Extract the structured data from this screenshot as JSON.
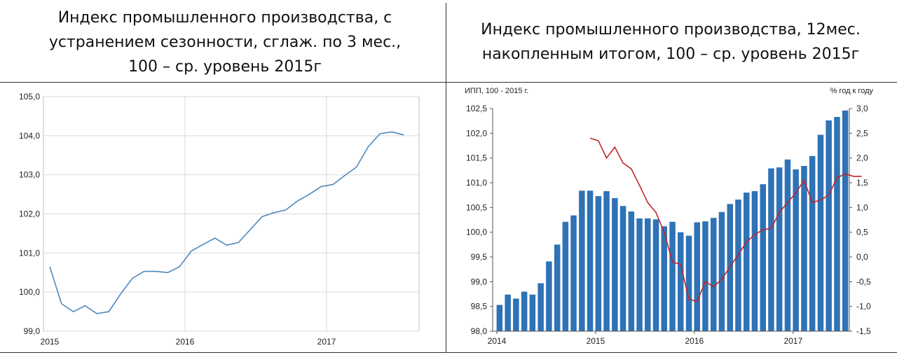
{
  "headers": {
    "left": [
      "Индекс промышленного производства, с",
      "устранением сезонности, сглаж. по 3 мес.,",
      "100 – ср. уровень 2015г"
    ],
    "right": [
      "Индекс промышленного производства, 12мес.",
      "накопленным итогом, 100 – ср. уровень 2015г"
    ]
  },
  "colors": {
    "line_blue": "#4f89bd",
    "bar_blue": "#2f72b6",
    "line_red": "#c0262b",
    "grid": "#d9d9d9"
  },
  "chart_data": [
    {
      "type": "line",
      "title": "",
      "x_tick_labels": [
        "2015",
        "2016",
        "2017"
      ],
      "x_start": "2015-01",
      "y_tick_labels": [
        "99,0",
        "100,0",
        "101,0",
        "102,0",
        "103,0",
        "104,0",
        "105,0"
      ],
      "ylim": [
        99,
        105
      ],
      "grid": true,
      "series": [
        {
          "values": [
            100.65,
            99.7,
            99.5,
            99.65,
            99.45,
            99.5,
            99.95,
            100.35,
            100.53,
            100.53,
            100.5,
            100.65,
            101.05,
            101.22,
            101.38,
            101.2,
            101.27,
            101.6,
            101.93,
            102.03,
            102.1,
            102.33,
            102.5,
            102.7,
            102.75,
            102.98,
            103.2,
            103.72,
            104.05,
            104.1,
            104.02
          ]
        }
      ]
    },
    {
      "type": "bar+line",
      "left_axis_title": "ИПП, 100 - 2015 г.",
      "right_axis_title": "% год к году",
      "x_tick_labels": [
        "2014",
        "2015",
        "2016",
        "2017"
      ],
      "x_start": "2014-01",
      "y_left_tick_labels": [
        "98,0",
        "98,5",
        "99,0",
        "99,5",
        "100,0",
        "100,5",
        "101,0",
        "101,5",
        "102,0",
        "102,5"
      ],
      "y_left_lim": [
        98,
        102.5
      ],
      "y_right_tick_labels": [
        "-1,5",
        "-1,0",
        "-0,5",
        "0,0",
        "0,5",
        "1,0",
        "1,5",
        "2,0",
        "2,5",
        "3,0"
      ],
      "y_right_lim": [
        -1.5,
        3
      ],
      "bars": [
        98.53,
        98.74,
        98.66,
        98.8,
        98.74,
        98.97,
        99.41,
        99.75,
        100.21,
        100.34,
        100.84,
        100.84,
        100.73,
        100.83,
        100.69,
        100.53,
        100.42,
        100.28,
        100.28,
        100.26,
        100.12,
        100.21,
        100.0,
        99.93,
        100.2,
        100.22,
        100.29,
        100.41,
        100.57,
        100.66,
        100.8,
        100.83,
        100.97,
        101.29,
        101.31,
        101.47,
        101.27,
        101.34,
        101.54,
        101.97,
        102.26,
        102.33,
        102.46
      ],
      "line_start_index": 11,
      "line": [
        2.4,
        2.35,
        2.0,
        2.22,
        1.9,
        1.78,
        1.45,
        1.1,
        0.9,
        0.5,
        -0.1,
        -0.15,
        -0.85,
        -0.9,
        -0.5,
        -0.6,
        -0.45,
        -0.2,
        0.05,
        0.3,
        0.45,
        0.55,
        0.58,
        0.9,
        1.1,
        1.3,
        1.55,
        1.1,
        1.15,
        1.25,
        1.6,
        1.68,
        1.63,
        1.63
      ]
    }
  ]
}
